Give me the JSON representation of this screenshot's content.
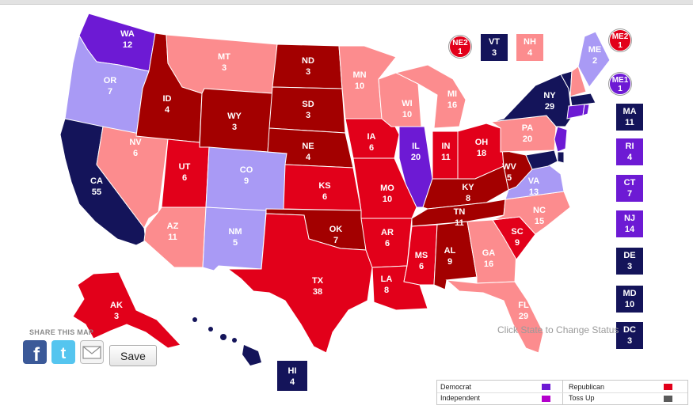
{
  "colors": {
    "dem_safe": "#14145a",
    "dem_likely": "#6d1ad4",
    "dem_lean": "#a99af5",
    "rep_safe": "#a30000",
    "rep_likely": "#e2001a",
    "rep_lean": "#fc8c8e",
    "toss_up": "#5a5a5a",
    "independent": "#b400cc"
  },
  "states": [
    {
      "abbr": "WA",
      "ev": "12"
    },
    {
      "abbr": "OR",
      "ev": "7"
    },
    {
      "abbr": "CA",
      "ev": "55"
    },
    {
      "abbr": "ID",
      "ev": "4"
    },
    {
      "abbr": "NV",
      "ev": "6"
    },
    {
      "abbr": "MT",
      "ev": "3"
    },
    {
      "abbr": "WY",
      "ev": "3"
    },
    {
      "abbr": "UT",
      "ev": "6"
    },
    {
      "abbr": "AZ",
      "ev": "11"
    },
    {
      "abbr": "CO",
      "ev": "9"
    },
    {
      "abbr": "NM",
      "ev": "5"
    },
    {
      "abbr": "ND",
      "ev": "3"
    },
    {
      "abbr": "SD",
      "ev": "3"
    },
    {
      "abbr": "NE",
      "ev": "4"
    },
    {
      "abbr": "KS",
      "ev": "6"
    },
    {
      "abbr": "OK",
      "ev": "7"
    },
    {
      "abbr": "TX",
      "ev": "38"
    },
    {
      "abbr": "MN",
      "ev": "10"
    },
    {
      "abbr": "IA",
      "ev": "6"
    },
    {
      "abbr": "MO",
      "ev": "10"
    },
    {
      "abbr": "AR",
      "ev": "6"
    },
    {
      "abbr": "LA",
      "ev": "8"
    },
    {
      "abbr": "WI",
      "ev": "10"
    },
    {
      "abbr": "IL",
      "ev": "20"
    },
    {
      "abbr": "MS",
      "ev": "6"
    },
    {
      "abbr": "MI",
      "ev": "16"
    },
    {
      "abbr": "IN",
      "ev": "11"
    },
    {
      "abbr": "OH",
      "ev": "18"
    },
    {
      "abbr": "KY",
      "ev": "8"
    },
    {
      "abbr": "TN",
      "ev": "11"
    },
    {
      "abbr": "AL",
      "ev": "9"
    },
    {
      "abbr": "GA",
      "ev": "16"
    },
    {
      "abbr": "FL",
      "ev": "29"
    },
    {
      "abbr": "SC",
      "ev": "9"
    },
    {
      "abbr": "NC",
      "ev": "15"
    },
    {
      "abbr": "VA",
      "ev": "13"
    },
    {
      "abbr": "WV",
      "ev": "5"
    },
    {
      "abbr": "PA",
      "ev": "20"
    },
    {
      "abbr": "NY",
      "ev": "29"
    },
    {
      "abbr": "ME",
      "ev": "2"
    },
    {
      "abbr": "AK",
      "ev": "3"
    },
    {
      "abbr": "HI",
      "ev": "4"
    }
  ],
  "callouts": {
    "ne2": {
      "abbr": "NE2",
      "ev": "1"
    },
    "vt": {
      "abbr": "VT",
      "ev": "3"
    },
    "nh": {
      "abbr": "NH",
      "ev": "4"
    },
    "me2": {
      "abbr": "ME2",
      "ev": "1"
    },
    "me1": {
      "abbr": "ME1",
      "ev": "1"
    },
    "ma": {
      "abbr": "MA",
      "ev": "11"
    },
    "ri": {
      "abbr": "RI",
      "ev": "4"
    },
    "ct": {
      "abbr": "CT",
      "ev": "7"
    },
    "nj": {
      "abbr": "NJ",
      "ev": "14"
    },
    "de": {
      "abbr": "DE",
      "ev": "3"
    },
    "md": {
      "abbr": "MD",
      "ev": "10"
    },
    "dc": {
      "abbr": "DC",
      "ev": "3"
    },
    "hi": {
      "abbr": "HI",
      "ev": "4"
    }
  },
  "share": {
    "title": "SHARE THIS MAP",
    "save_label": "Save",
    "facebook_icon": "facebook-icon",
    "twitter_icon": "twitter-icon",
    "email_icon": "email-icon"
  },
  "hint": "Click State to Change Status",
  "legend": {
    "democrat": "Democrat",
    "independent": "Independent",
    "republican": "Republican",
    "toss_up": "Toss Up"
  }
}
